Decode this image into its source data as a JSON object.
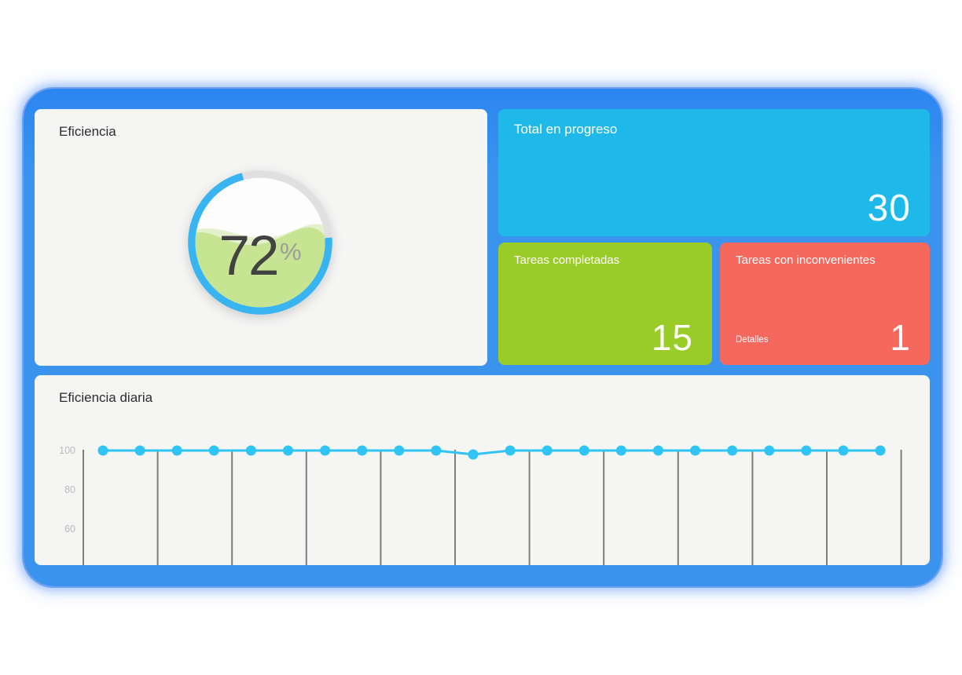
{
  "page": {
    "container_color": "#3a94ee",
    "card_bg": "#f5f5f4"
  },
  "efficiency_card": {
    "title": "Eficiencia",
    "value": "72",
    "percent": 72,
    "unit": "%",
    "ring_color": "#38b4f1",
    "track_color": "#e0e0e0",
    "liquid_color": "#c6e492",
    "liquid_light_color": "#d3eaae"
  },
  "progress_card": {
    "title": "Total en progreso",
    "value": "30",
    "color": "#1fb9e9"
  },
  "completed_card": {
    "title": "Tareas completadas",
    "value": "15",
    "color": "#99cc26"
  },
  "issues_card": {
    "title": "Tareas con inconvenientes",
    "value": "1",
    "link_label": "Detalles",
    "color": "#f4685e"
  },
  "daily_card": {
    "title": "Eficiencia diaria"
  },
  "chart_data": {
    "type": "line",
    "title": "Eficiencia diaria",
    "x": [
      1,
      2,
      3,
      4,
      5,
      6,
      7,
      8,
      9,
      10,
      11,
      12,
      13,
      14,
      15,
      16,
      17,
      18,
      19,
      20,
      21,
      22
    ],
    "values": [
      100,
      100,
      100,
      100,
      100,
      100,
      100,
      100,
      100,
      100,
      98,
      100,
      100,
      100,
      100,
      100,
      100,
      100,
      100,
      100,
      100,
      100
    ],
    "y_ticks": [
      100,
      80,
      60
    ],
    "ylim": [
      50,
      105
    ],
    "xlabel": "",
    "ylabel": "",
    "line_color": "#2fc4f3",
    "point_color": "#2fc4f3",
    "grid": "vertical-only",
    "gridline_count": 12,
    "gridline_color": "#7d7d7d",
    "tick_label_color": "#b9b9b9",
    "legend": "none"
  }
}
